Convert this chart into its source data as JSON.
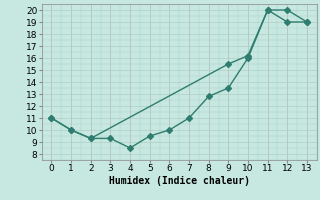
{
  "line1_x": [
    0,
    1,
    2,
    3,
    4,
    5,
    6,
    7,
    8,
    9,
    10,
    11,
    12,
    13
  ],
  "line1_y": [
    11,
    10,
    9.3,
    9.3,
    8.5,
    9.5,
    10,
    11,
    12.8,
    13.5,
    16,
    20,
    20,
    19
  ],
  "line2_x": [
    0,
    1,
    2,
    9,
    10,
    11,
    12,
    13
  ],
  "line2_y": [
    11,
    10,
    9.3,
    15.5,
    16.2,
    20,
    19,
    19
  ],
  "line_color": "#2e7d6e",
  "bg_color": "#c6e8e0",
  "grid_color_major": "#aecec6",
  "xlabel": "Humidex (Indice chaleur)",
  "xlim": [
    -0.5,
    13.5
  ],
  "ylim": [
    8,
    20.5
  ],
  "xticks": [
    0,
    1,
    2,
    3,
    4,
    5,
    6,
    7,
    8,
    9,
    10,
    11,
    12,
    13
  ],
  "yticks": [
    8,
    9,
    10,
    11,
    12,
    13,
    14,
    15,
    16,
    17,
    18,
    19,
    20
  ],
  "marker_size": 3,
  "line_width": 1.0,
  "font_size": 6.5
}
